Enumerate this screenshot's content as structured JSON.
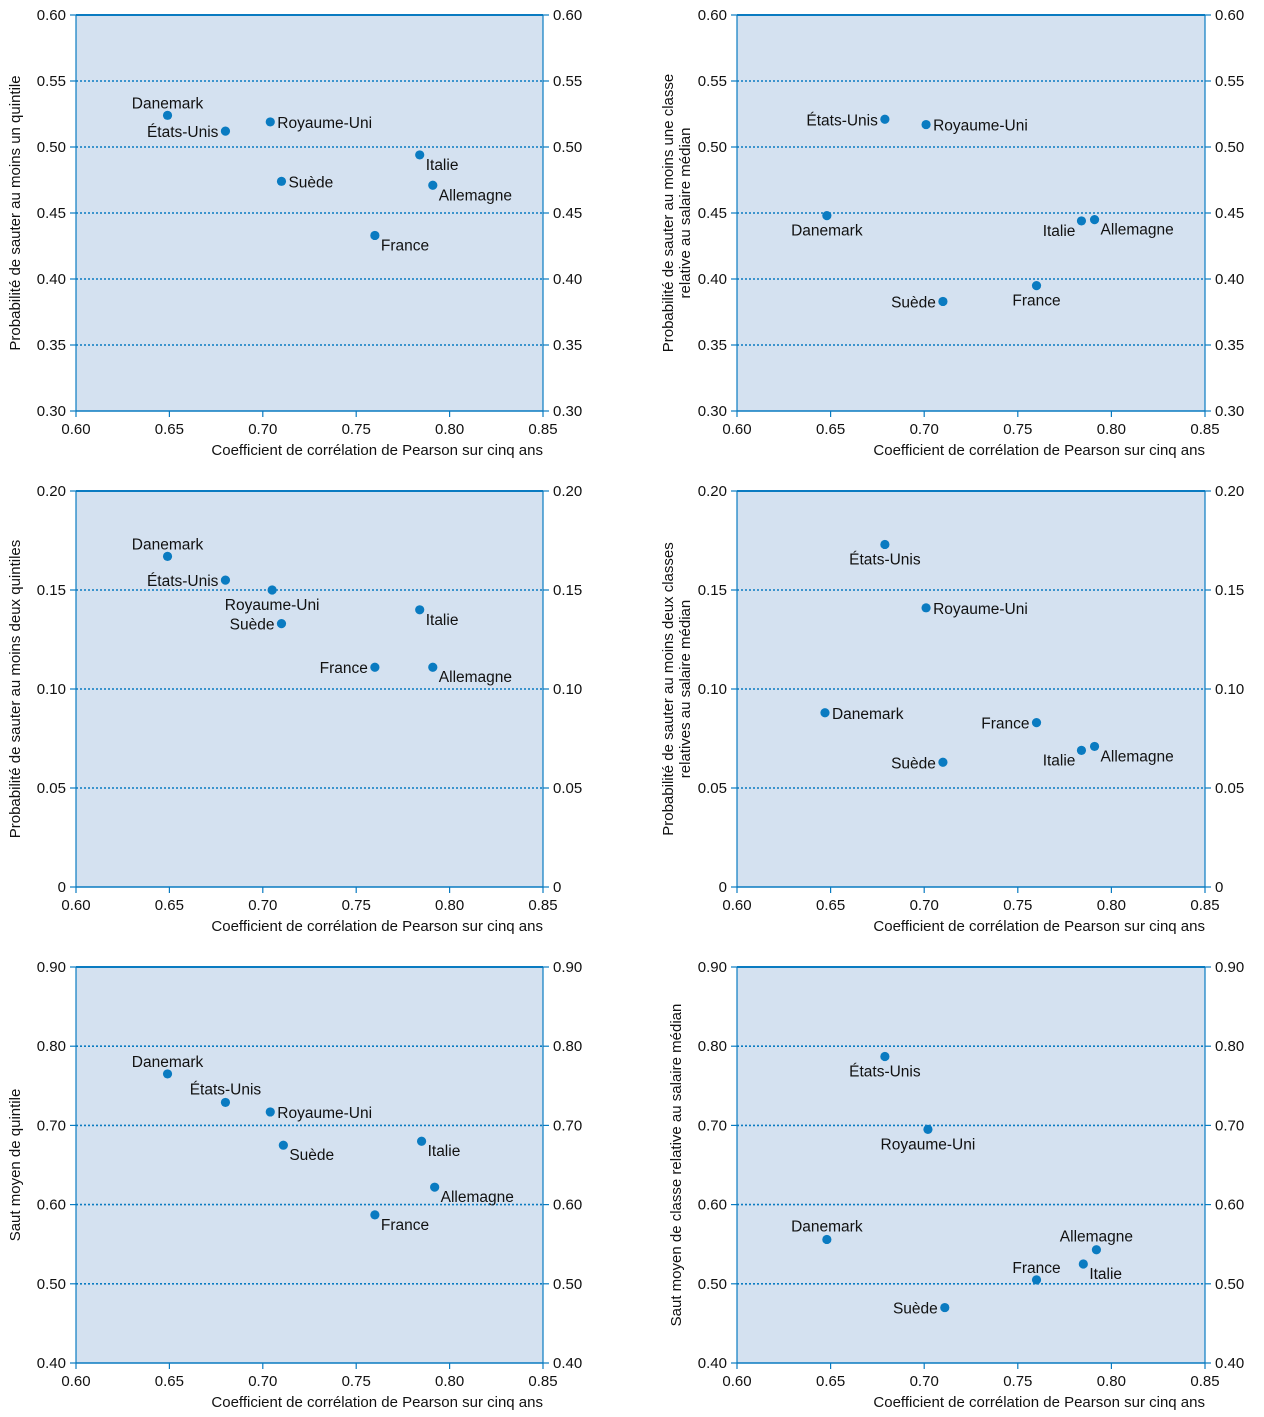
{
  "colors": {
    "plot_bg": "#d4e1f0",
    "accent": "#0a7bc1",
    "grid": "#0a7bc1",
    "text": "#111111"
  },
  "chart_data": [
    {
      "type": "scatter",
      "xlabel": "Coefficient de corrélation de Pearson sur cinq ans",
      "ylabel": [
        "Probabilité de sauter au moins un quintile"
      ],
      "xlim": [
        0.6,
        0.85
      ],
      "ylim": [
        0.3,
        0.6
      ],
      "xticks": [
        "0.60",
        "0.65",
        "0.70",
        "0.75",
        "0.80",
        "0.85"
      ],
      "yticks": [
        "0.30",
        "0.35",
        "0.40",
        "0.45",
        "0.50",
        "0.55",
        "0.60"
      ],
      "points": [
        {
          "label": "Danemark",
          "x": 0.649,
          "y": 0.524,
          "pos": "above-left"
        },
        {
          "label": "États-Unis",
          "x": 0.68,
          "y": 0.512,
          "pos": "left"
        },
        {
          "label": "Royaume-Uni",
          "x": 0.704,
          "y": 0.519,
          "pos": "right"
        },
        {
          "label": "Italie",
          "x": 0.784,
          "y": 0.494,
          "pos": "right-below"
        },
        {
          "label": "Suède",
          "x": 0.71,
          "y": 0.474,
          "pos": "right"
        },
        {
          "label": "Allemagne",
          "x": 0.791,
          "y": 0.471,
          "pos": "right-below"
        },
        {
          "label": "France",
          "x": 0.76,
          "y": 0.433,
          "pos": "right-below"
        }
      ]
    },
    {
      "type": "scatter",
      "xlabel": "Coefficient de corrélation de Pearson sur cinq ans",
      "ylabel": [
        "Probabilité de sauter au moins une classe",
        "relative au salaire médian"
      ],
      "xlim": [
        0.6,
        0.85
      ],
      "ylim": [
        0.3,
        0.6
      ],
      "xticks": [
        "0.60",
        "0.65",
        "0.70",
        "0.75",
        "0.80",
        "0.85"
      ],
      "yticks": [
        "0.30",
        "0.35",
        "0.40",
        "0.45",
        "0.50",
        "0.55",
        "0.60"
      ],
      "points": [
        {
          "label": "États-Unis",
          "x": 0.679,
          "y": 0.521,
          "pos": "left"
        },
        {
          "label": "Royaume-Uni",
          "x": 0.701,
          "y": 0.517,
          "pos": "right"
        },
        {
          "label": "Danemark",
          "x": 0.648,
          "y": 0.448,
          "pos": "below"
        },
        {
          "label": "Italie",
          "x": 0.784,
          "y": 0.444,
          "pos": "left-below"
        },
        {
          "label": "Allemagne",
          "x": 0.791,
          "y": 0.445,
          "pos": "right-below"
        },
        {
          "label": "France",
          "x": 0.76,
          "y": 0.395,
          "pos": "below"
        },
        {
          "label": "Suède",
          "x": 0.71,
          "y": 0.383,
          "pos": "left"
        }
      ]
    },
    {
      "type": "scatter",
      "xlabel": "Coefficient de corrélation de Pearson sur cinq ans",
      "ylabel": [
        "Probabilité de sauter au moins deux quintiles"
      ],
      "xlim": [
        0.6,
        0.85
      ],
      "ylim": [
        0,
        0.2
      ],
      "xticks": [
        "0.60",
        "0.65",
        "0.70",
        "0.75",
        "0.80",
        "0.85"
      ],
      "yticks": [
        "0",
        "0.05",
        "0.10",
        "0.15",
        "0.20"
      ],
      "points": [
        {
          "label": "Danemark",
          "x": 0.649,
          "y": 0.167,
          "pos": "above-left"
        },
        {
          "label": "États-Unis",
          "x": 0.68,
          "y": 0.155,
          "pos": "left"
        },
        {
          "label": "Royaume-Uni",
          "x": 0.705,
          "y": 0.15,
          "pos": "below"
        },
        {
          "label": "Italie",
          "x": 0.784,
          "y": 0.14,
          "pos": "right-below"
        },
        {
          "label": "Suède",
          "x": 0.71,
          "y": 0.133,
          "pos": "left"
        },
        {
          "label": "France",
          "x": 0.76,
          "y": 0.111,
          "pos": "left"
        },
        {
          "label": "Allemagne",
          "x": 0.791,
          "y": 0.111,
          "pos": "right-below"
        }
      ]
    },
    {
      "type": "scatter",
      "xlabel": "Coefficient de corrélation de Pearson sur cinq ans",
      "ylabel": [
        "Probabilité de sauter au moins deux classes",
        "relatives au salaire médian"
      ],
      "xlim": [
        0.6,
        0.85
      ],
      "ylim": [
        0,
        0.2
      ],
      "xticks": [
        "0.60",
        "0.65",
        "0.70",
        "0.75",
        "0.80",
        "0.85"
      ],
      "yticks": [
        "0",
        "0.05",
        "0.10",
        "0.15",
        "0.20"
      ],
      "points": [
        {
          "label": "États-Unis",
          "x": 0.679,
          "y": 0.173,
          "pos": "below"
        },
        {
          "label": "Royaume-Uni",
          "x": 0.701,
          "y": 0.141,
          "pos": "right"
        },
        {
          "label": "Danemark",
          "x": 0.647,
          "y": 0.088,
          "pos": "right"
        },
        {
          "label": "France",
          "x": 0.76,
          "y": 0.083,
          "pos": "left"
        },
        {
          "label": "Allemagne",
          "x": 0.791,
          "y": 0.071,
          "pos": "right-below"
        },
        {
          "label": "Italie",
          "x": 0.784,
          "y": 0.069,
          "pos": "left-below"
        },
        {
          "label": "Suède",
          "x": 0.71,
          "y": 0.063,
          "pos": "left"
        }
      ]
    },
    {
      "type": "scatter",
      "xlabel": "Coefficient de corrélation de Pearson sur cinq ans",
      "ylabel": [
        "Saut moyen de quintile"
      ],
      "xlim": [
        0.6,
        0.85
      ],
      "ylim": [
        0.4,
        0.9
      ],
      "xticks": [
        "0.60",
        "0.65",
        "0.70",
        "0.75",
        "0.80",
        "0.85"
      ],
      "yticks": [
        "0.40",
        "0.50",
        "0.60",
        "0.70",
        "0.80",
        "0.90"
      ],
      "points": [
        {
          "label": "Danemark",
          "x": 0.649,
          "y": 0.765,
          "pos": "above-left"
        },
        {
          "label": "États-Unis",
          "x": 0.68,
          "y": 0.729,
          "pos": "above"
        },
        {
          "label": "Royaume-Uni",
          "x": 0.704,
          "y": 0.717,
          "pos": "right"
        },
        {
          "label": "Italie",
          "x": 0.785,
          "y": 0.68,
          "pos": "right-below"
        },
        {
          "label": "Suède",
          "x": 0.711,
          "y": 0.675,
          "pos": "right-below"
        },
        {
          "label": "Allemagne",
          "x": 0.792,
          "y": 0.622,
          "pos": "right-below"
        },
        {
          "label": "France",
          "x": 0.76,
          "y": 0.587,
          "pos": "right-below"
        }
      ]
    },
    {
      "type": "scatter",
      "xlabel": "Coefficient de corrélation de Pearson sur cinq ans",
      "ylabel": [
        "Saut moyen de classe relative au salaire médian"
      ],
      "xlim": [
        0.6,
        0.85
      ],
      "ylim": [
        0.4,
        0.9
      ],
      "xticks": [
        "0.60",
        "0.65",
        "0.70",
        "0.75",
        "0.80",
        "0.85"
      ],
      "yticks": [
        "0.40",
        "0.50",
        "0.60",
        "0.70",
        "0.80",
        "0.90"
      ],
      "points": [
        {
          "label": "États-Unis",
          "x": 0.679,
          "y": 0.787,
          "pos": "below"
        },
        {
          "label": "Royaume-Uni",
          "x": 0.702,
          "y": 0.695,
          "pos": "below"
        },
        {
          "label": "Danemark",
          "x": 0.648,
          "y": 0.556,
          "pos": "above"
        },
        {
          "label": "Allemagne",
          "x": 0.792,
          "y": 0.543,
          "pos": "above"
        },
        {
          "label": "Italie",
          "x": 0.785,
          "y": 0.525,
          "pos": "right-below"
        },
        {
          "label": "France",
          "x": 0.76,
          "y": 0.505,
          "pos": "above-left"
        },
        {
          "label": "Suède",
          "x": 0.711,
          "y": 0.47,
          "pos": "left"
        }
      ]
    }
  ]
}
